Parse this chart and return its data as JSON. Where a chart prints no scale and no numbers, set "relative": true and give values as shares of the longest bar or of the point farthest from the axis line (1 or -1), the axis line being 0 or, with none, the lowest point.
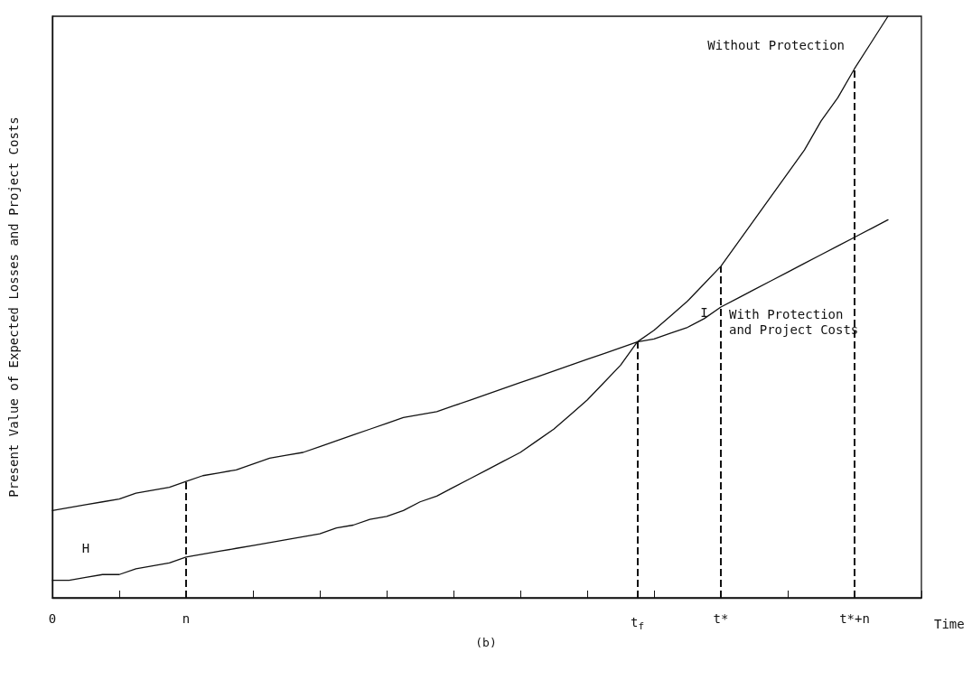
{
  "chart_data": {
    "type": "line",
    "relative": true,
    "xlabel": "Time",
    "ylabel": "Present Value of Expected Losses and Project Costs",
    "categories": [
      "0",
      null,
      null,
      null,
      null,
      null,
      null,
      null,
      "n",
      null,
      null,
      null,
      null,
      null,
      null,
      null,
      null,
      null,
      null,
      null,
      null,
      null,
      null,
      null,
      null,
      null,
      null,
      null,
      null,
      null,
      null,
      null,
      null,
      null,
      null,
      "t$_{f}$",
      null,
      null,
      null,
      null,
      "t*",
      null,
      null,
      null,
      null,
      null,
      null,
      null,
      "t*+n",
      null,
      null,
      null,
      null
    ],
    "series": [
      {
        "name": "Without Protection",
        "color": "#111111",
        "values": [
          0.03,
          0.03,
          0.035,
          0.04,
          0.04,
          0.05,
          0.055,
          0.06,
          0.07,
          0.075,
          0.08,
          0.085,
          0.09,
          0.095,
          0.1,
          0.105,
          0.11,
          0.12,
          0.125,
          0.135,
          0.14,
          0.15,
          0.165,
          0.175,
          0.19,
          0.205,
          0.22,
          0.235,
          0.25,
          0.27,
          0.29,
          0.315,
          0.34,
          0.37,
          0.4,
          0.44,
          0.46,
          0.485,
          0.51,
          0.54,
          0.57,
          0.61,
          0.65,
          0.69,
          0.73,
          0.77,
          0.82,
          0.86,
          0.91,
          0.955,
          1,
          null,
          null
        ]
      },
      {
        "name": "With Protection and Project Costs",
        "color": "#111111",
        "values": [
          0.15,
          0.155,
          0.16,
          0.165,
          0.17,
          0.18,
          0.185,
          0.19,
          0.2,
          0.21,
          0.215,
          0.22,
          0.23,
          0.24,
          0.245,
          0.25,
          0.26,
          0.27,
          0.28,
          0.29,
          0.3,
          0.31,
          0.315,
          0.32,
          0.33,
          0.34,
          0.35,
          0.36,
          0.37,
          0.38,
          0.39,
          0.4,
          0.41,
          0.42,
          0.43,
          0.44,
          0.445,
          0.455,
          0.465,
          0.48,
          0.5,
          0.515,
          0.53,
          0.545,
          0.56,
          0.575,
          0.59,
          0.605,
          0.62,
          0.635,
          0.65,
          null,
          null
        ]
      }
    ],
    "ref_lines": [
      {
        "axis": "x",
        "value": "n",
        "line_style": "dashed"
      },
      {
        "axis": "x",
        "value": "t$_{f}$",
        "line_style": "dashed"
      },
      {
        "axis": "x",
        "value": "t*",
        "line_style": "dashed"
      },
      {
        "axis": "x",
        "value": "t*+n",
        "line_style": "dashed"
      }
    ],
    "annotations": [
      "H",
      "I",
      "(b)"
    ],
    "grid": false,
    "legend": false,
    "marker": "none",
    "line_style": "solid",
    "tick_labels": "x"
  }
}
